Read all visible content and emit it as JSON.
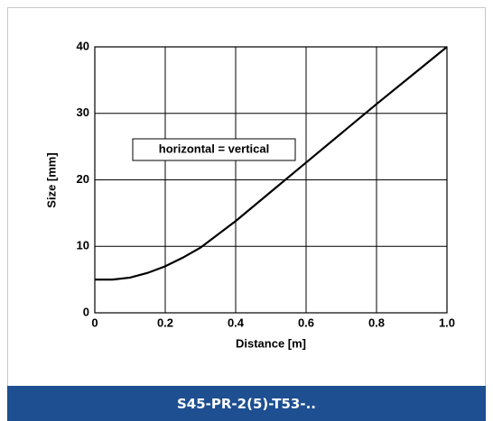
{
  "chart_data": {
    "type": "line",
    "xlabel": "Distance [m]",
    "ylabel": "Size [mm]",
    "annotation": "horizontal = vertical",
    "x": [
      0,
      0.05,
      0.1,
      0.15,
      0.2,
      0.25,
      0.3,
      0.4,
      0.5,
      0.6,
      0.7,
      0.8,
      0.9,
      1.0
    ],
    "values": [
      5,
      5,
      5.3,
      6,
      7,
      8.3,
      9.8,
      13.8,
      18.2,
      22.6,
      27,
      31.4,
      35.7,
      40
    ],
    "color": "#000000",
    "xlim": [
      0,
      1
    ],
    "xticks": [
      0,
      0.2,
      0.4,
      0.6,
      0.8,
      {
        "value": 1,
        "label": "1.0"
      }
    ],
    "ylim": [
      0,
      40
    ],
    "yticks": [
      0,
      10,
      20,
      30,
      40
    ],
    "grid": true
  },
  "footer": {
    "title": "S45-PR-2(5)-T53-.."
  }
}
